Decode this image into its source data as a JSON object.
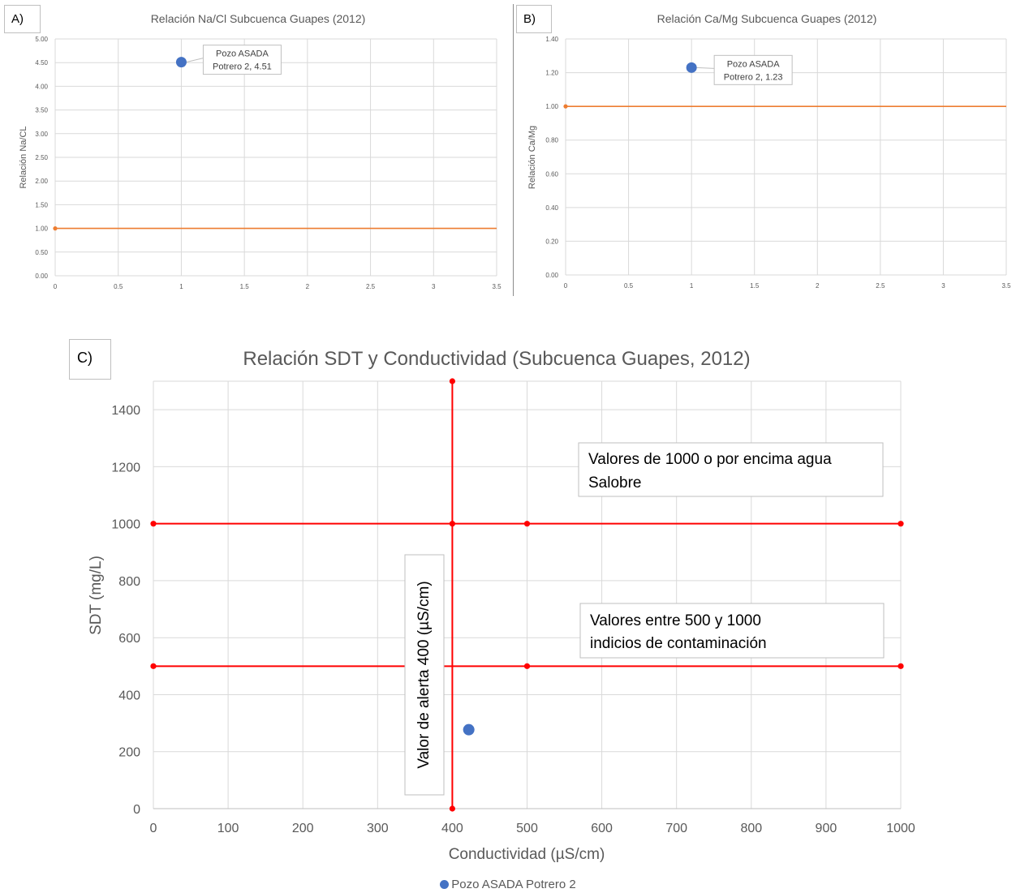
{
  "colors": {
    "series": "#4472c4",
    "reference_orange": "#ed7d31",
    "reference_red": "#ff0000",
    "grid": "#d9d9d9"
  },
  "chart_data": [
    {
      "panel": "A)",
      "type": "scatter",
      "title": "Relación Na/Cl Subcuenca Guapes (2012)",
      "xlabel": "",
      "ylabel": "Relación Na/CL",
      "xlim": [
        0,
        3.5
      ],
      "ylim": [
        0,
        5
      ],
      "x_ticks": [
        "0",
        "0.5",
        "1",
        "1.5",
        "2",
        "2.5",
        "3",
        "3.5"
      ],
      "y_ticks": [
        "0.00",
        "0.50",
        "1.00",
        "1.50",
        "2.00",
        "2.50",
        "3.00",
        "3.50",
        "4.00",
        "4.50",
        "5.00"
      ],
      "series": [
        {
          "x": [
            1
          ],
          "y": [
            4.51
          ]
        }
      ],
      "reference_line": {
        "y": 1.0,
        "x_start": 0
      },
      "annotation": {
        "line1": "Pozo ASADA",
        "line2": "Potrero 2, 4.51"
      },
      "grid": true
    },
    {
      "panel": "B)",
      "type": "scatter",
      "title": "Relación Ca/Mg Subcuenca Guapes (2012)",
      "xlabel": "",
      "ylabel": "Relación Ca/Mg",
      "xlim": [
        0,
        3.5
      ],
      "ylim": [
        0,
        1.4
      ],
      "x_ticks": [
        "0",
        "0.5",
        "1",
        "1.5",
        "2",
        "2.5",
        "3",
        "3.5"
      ],
      "y_ticks": [
        "0.00",
        "0.20",
        "0.40",
        "0.60",
        "0.80",
        "1.00",
        "1.20",
        "1.40"
      ],
      "series": [
        {
          "x": [
            1
          ],
          "y": [
            1.23
          ]
        }
      ],
      "reference_line": {
        "y": 1.0,
        "x_start": 0
      },
      "annotation": {
        "line1": "Pozo ASADA",
        "line2": "Potrero 2, 1.23"
      },
      "grid": true
    },
    {
      "panel": "C)",
      "type": "scatter",
      "title": "Relación SDT y Conductividad (Subcuenca Guapes, 2012)",
      "xlabel": "Conductividad (µS/cm)",
      "ylabel": "SDT (mg/L)",
      "xlim": [
        0,
        1000
      ],
      "ylim": [
        0,
        1500
      ],
      "x_ticks": [
        "0",
        "100",
        "200",
        "300",
        "400",
        "500",
        "600",
        "700",
        "800",
        "900",
        "1000"
      ],
      "y_ticks": [
        "0",
        "200",
        "400",
        "600",
        "800",
        "1000",
        "1200",
        "1400"
      ],
      "series": [
        {
          "name": "Pozo ASADA Potrero 2",
          "x": [
            422
          ],
          "y": [
            277
          ]
        }
      ],
      "reference_lines": [
        {
          "points": [
            [
              400,
              0
            ],
            [
              400,
              1500
            ]
          ]
        },
        {
          "points": [
            [
              0,
              1000
            ],
            [
              400,
              1000
            ],
            [
              500,
              1000
            ],
            [
              1000,
              1000
            ]
          ]
        },
        {
          "points": [
            [
              0,
              500
            ],
            [
              500,
              500
            ],
            [
              1000,
              500
            ]
          ]
        }
      ],
      "annotations": {
        "vertical": "Valor de alerta 400 (µS/cm)",
        "upper_line1": "Valores de 1000 o por encima agua",
        "upper_line2": "Salobre",
        "lower_line1": "Valores entre 500 y 1000",
        "lower_line2": "indicios de contaminación"
      },
      "legend": "bottom",
      "grid": true
    }
  ]
}
